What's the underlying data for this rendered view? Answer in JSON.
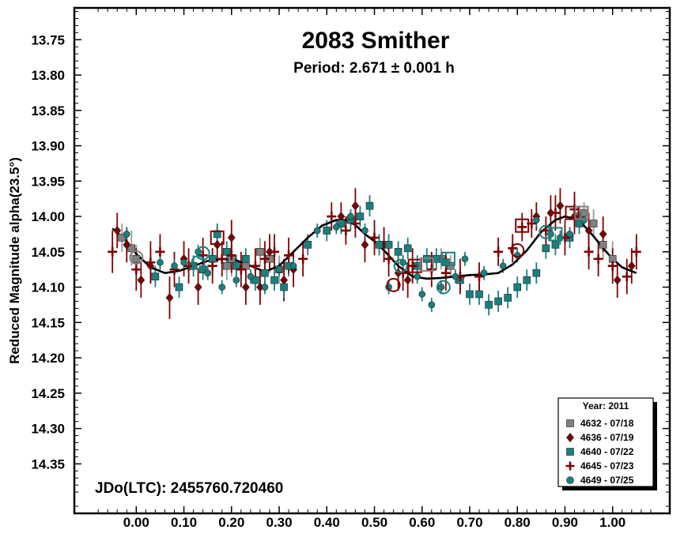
{
  "chart_data": {
    "type": "scatter",
    "title": "2083 Smither",
    "subtitle": "Period: 2.671 ± 0.001 h",
    "ylabel": "Reduced Magnitude alpha(23.5°)",
    "xlabel": "",
    "annotation": "JDo(LTC): 2455760.720460",
    "xlim": [
      -0.13,
      1.12
    ],
    "ylim": [
      13.705,
      14.42
    ],
    "y_inverted": true,
    "xticks": [
      0.0,
      0.1,
      0.2,
      0.3,
      0.4,
      0.5,
      0.6,
      0.7,
      0.8,
      0.9,
      1.0
    ],
    "xtick_labels": [
      "0.00",
      "0.10",
      "0.20",
      "0.30",
      "0.40",
      "0.50",
      "0.60",
      "0.70",
      "0.80",
      "0.90",
      "1.00"
    ],
    "yticks": [
      13.75,
      13.8,
      13.85,
      13.9,
      13.95,
      14.0,
      14.05,
      14.1,
      14.15,
      14.2,
      14.25,
      14.3,
      14.35
    ],
    "ytick_labels": [
      "13.75",
      "13.80",
      "13.85",
      "13.90",
      "13.95",
      "14.00",
      "14.05",
      "14.10",
      "14.15",
      "14.20",
      "14.25",
      "14.30",
      "14.35"
    ],
    "legend": {
      "title": "Year: 2011",
      "position": "bottom-right",
      "entries": [
        {
          "label": "4632 - 07/18",
          "color": "#808080",
          "marker": "square"
        },
        {
          "label": "4636 - 07/19",
          "color": "#7f0000",
          "marker": "diamond"
        },
        {
          "label": "4640 - 07/22",
          "color": "#1a7f7f",
          "marker": "square"
        },
        {
          "label": "4645 - 07/23",
          "color": "#7f0000",
          "marker": "plus"
        },
        {
          "label": "4649 - 07/25",
          "color": "#1a7f7f",
          "marker": "circle"
        }
      ]
    },
    "fit_curve": {
      "x": [
        -0.05,
        -0.02,
        0.0,
        0.03,
        0.06,
        0.09,
        0.12,
        0.15,
        0.18,
        0.21,
        0.24,
        0.27,
        0.3,
        0.33,
        0.36,
        0.39,
        0.42,
        0.44,
        0.46,
        0.48,
        0.5,
        0.52,
        0.55,
        0.58,
        0.61,
        0.64,
        0.67,
        0.7,
        0.73,
        0.76,
        0.79,
        0.82,
        0.85,
        0.88,
        0.9,
        0.92,
        0.94,
        0.96,
        0.98,
        1.0,
        1.02,
        1.05
      ],
      "y": [
        14.017,
        14.035,
        14.053,
        14.072,
        14.08,
        14.077,
        14.07,
        14.063,
        14.06,
        14.062,
        14.07,
        14.078,
        14.07,
        14.05,
        14.03,
        14.013,
        14.005,
        14.005,
        14.012,
        14.025,
        14.035,
        14.048,
        14.07,
        14.085,
        14.088,
        14.087,
        14.085,
        14.083,
        14.082,
        14.08,
        14.068,
        14.048,
        14.022,
        14.005,
        14.0,
        14.003,
        14.013,
        14.028,
        14.045,
        14.06,
        14.072,
        14.08
      ]
    },
    "series": [
      {
        "name": "4632 - 07/18",
        "marker": "square",
        "color": "#808080",
        "x": [
          -0.03,
          -0.01,
          0.0,
          0.19,
          0.2,
          0.23,
          0.26,
          0.28,
          0.3,
          0.64,
          0.66,
          0.93,
          0.94,
          0.96,
          0.98,
          1.0
        ],
        "y": [
          14.03,
          14.045,
          14.06,
          14.07,
          14.06,
          14.07,
          14.05,
          14.06,
          14.075,
          14.06,
          14.07,
          14.0,
          13.995,
          14.01,
          14.04,
          14.06
        ],
        "yerr": [
          0.02,
          0.025,
          0.02,
          0.02,
          0.025,
          0.02,
          0.02,
          0.02,
          0.02,
          0.015,
          0.015,
          0.015,
          0.015,
          0.02,
          0.02,
          0.025
        ]
      },
      {
        "name": "4636 - 07/19",
        "marker": "diamond",
        "color": "#7f0000",
        "x": [
          -0.04,
          -0.02,
          0.01,
          0.03,
          0.07,
          0.1,
          0.13,
          0.17,
          0.2,
          0.23,
          0.26,
          0.28,
          0.31,
          0.33,
          0.43,
          0.46,
          0.48,
          0.52,
          0.55,
          0.57,
          0.84,
          0.87,
          0.89,
          0.92,
          0.95,
          0.98,
          1.01,
          1.04
        ],
        "y": [
          14.02,
          14.04,
          14.09,
          14.07,
          14.115,
          14.06,
          14.1,
          14.04,
          14.03,
          14.1,
          14.1,
          14.05,
          14.09,
          14.075,
          14.0,
          13.985,
          14.04,
          14.04,
          14.08,
          14.09,
          14.0,
          13.995,
          13.985,
          14.0,
          14.02,
          14.025,
          14.09,
          14.07
        ],
        "yerr": [
          0.025,
          0.025,
          0.025,
          0.025,
          0.03,
          0.025,
          0.025,
          0.025,
          0.025,
          0.025,
          0.025,
          0.025,
          0.03,
          0.025,
          0.02,
          0.025,
          0.025,
          0.025,
          0.025,
          0.025,
          0.02,
          0.025,
          0.025,
          0.025,
          0.025,
          0.025,
          0.025,
          0.025
        ]
      },
      {
        "name": "4640 - 07/22",
        "marker": "square",
        "color": "#1a7f7f",
        "x": [
          0.04,
          0.09,
          0.12,
          0.14,
          0.16,
          0.17,
          0.19,
          0.21,
          0.23,
          0.25,
          0.27,
          0.29,
          0.31,
          0.32,
          0.36,
          0.4,
          0.43,
          0.45,
          0.47,
          0.49,
          0.51,
          0.53,
          0.55,
          0.57,
          0.59,
          0.61,
          0.63,
          0.65,
          0.68,
          0.7,
          0.72,
          0.74,
          0.76,
          0.78,
          0.8,
          0.82,
          0.84,
          0.86,
          0.88,
          0.91,
          0.93
        ],
        "y": [
          14.085,
          14.1,
          14.07,
          14.075,
          14.06,
          14.025,
          14.05,
          14.07,
          14.06,
          14.09,
          14.08,
          14.09,
          14.1,
          14.07,
          14.04,
          14.02,
          14.01,
          14.005,
          14.0,
          13.985,
          14.04,
          14.04,
          14.05,
          14.045,
          14.07,
          14.06,
          14.06,
          14.065,
          14.09,
          14.11,
          14.11,
          14.125,
          14.12,
          14.115,
          14.1,
          14.09,
          14.08,
          14.045,
          14.04,
          14.03,
          14.01
        ],
        "yerr": [
          0.015,
          0.015,
          0.015,
          0.015,
          0.015,
          0.015,
          0.015,
          0.015,
          0.015,
          0.015,
          0.015,
          0.015,
          0.015,
          0.015,
          0.015,
          0.015,
          0.015,
          0.015,
          0.015,
          0.015,
          0.015,
          0.015,
          0.015,
          0.015,
          0.015,
          0.015,
          0.015,
          0.015,
          0.015,
          0.015,
          0.015,
          0.015,
          0.015,
          0.015,
          0.015,
          0.015,
          0.015,
          0.015,
          0.015,
          0.015,
          0.015
        ]
      },
      {
        "name": "4645 - 07/23",
        "marker": "plus",
        "color": "#7f0000",
        "x": [
          -0.05,
          0.0,
          0.03,
          0.05,
          0.08,
          0.11,
          0.14,
          0.16,
          0.18,
          0.2,
          0.22,
          0.25,
          0.27,
          0.29,
          0.32,
          0.35,
          0.41,
          0.44,
          0.46,
          0.5,
          0.53,
          0.56,
          0.58,
          0.62,
          0.65,
          0.68,
          0.72,
          0.76,
          0.79,
          0.81,
          0.83,
          0.86,
          0.88,
          0.9,
          0.92,
          0.95,
          0.97,
          1.0,
          1.03,
          1.05
        ],
        "y": [
          14.05,
          14.075,
          14.065,
          14.05,
          14.075,
          14.07,
          14.055,
          14.07,
          14.06,
          14.055,
          14.075,
          14.07,
          14.06,
          14.05,
          14.055,
          14.06,
          14.0,
          14.02,
          14.01,
          14.03,
          14.06,
          14.08,
          14.07,
          14.075,
          14.08,
          14.085,
          14.085,
          14.05,
          14.045,
          14.015,
          14.01,
          14.02,
          13.995,
          14.03,
          13.99,
          14.05,
          14.06,
          14.07,
          14.085,
          14.05
        ],
        "yerr": [
          0.03,
          0.03,
          0.03,
          0.025,
          0.025,
          0.025,
          0.025,
          0.025,
          0.025,
          0.025,
          0.025,
          0.025,
          0.025,
          0.025,
          0.025,
          0.025,
          0.02,
          0.02,
          0.02,
          0.025,
          0.025,
          0.025,
          0.025,
          0.025,
          0.025,
          0.025,
          0.02,
          0.02,
          0.02,
          0.02,
          0.02,
          0.02,
          0.025,
          0.025,
          0.025,
          0.025,
          0.025,
          0.025,
          0.025,
          0.025
        ]
      },
      {
        "name": "4649 - 07/25",
        "marker": "circle",
        "color": "#1a7f7f",
        "x": [
          -0.02,
          0.05,
          0.08,
          0.1,
          0.13,
          0.15,
          0.18,
          0.21,
          0.24,
          0.27,
          0.3,
          0.33,
          0.38,
          0.42,
          0.45,
          0.48,
          0.53,
          0.56,
          0.59,
          0.6,
          0.62,
          0.64,
          0.67,
          0.69,
          0.73,
          0.77,
          0.8,
          0.84,
          0.87,
          0.89,
          0.91,
          0.94
        ],
        "y": [
          14.025,
          14.065,
          14.07,
          14.065,
          14.05,
          14.08,
          14.1,
          14.09,
          14.085,
          14.1,
          14.075,
          14.07,
          14.02,
          14.015,
          14.0,
          14.02,
          14.1,
          14.065,
          14.085,
          14.11,
          14.125,
          14.1,
          14.085,
          14.06,
          14.08,
          14.07,
          14.055,
          14.005,
          14.025,
          14.03,
          14.025,
          14.005
        ],
        "yerr": [
          0.01,
          0.01,
          0.01,
          0.01,
          0.01,
          0.01,
          0.01,
          0.01,
          0.01,
          0.01,
          0.01,
          0.01,
          0.01,
          0.01,
          0.01,
          0.01,
          0.01,
          0.01,
          0.01,
          0.01,
          0.01,
          0.01,
          0.01,
          0.01,
          0.01,
          0.01,
          0.01,
          0.01,
          0.01,
          0.01,
          0.01,
          0.01
        ]
      }
    ],
    "highlighted_points": [
      {
        "series": "4632 - 07/18",
        "marker": "circle",
        "x": 0.0,
        "y": 14.058
      },
      {
        "series": "4640 - 07/22",
        "marker": "circle",
        "x": 0.14,
        "y": 14.052
      },
      {
        "series": "4640 - 07/22",
        "marker": "circle",
        "x": 0.13,
        "y": 14.065
      },
      {
        "series": "4645 - 07/23",
        "marker": "square",
        "x": 0.17,
        "y": 14.03
      },
      {
        "series": "4645 - 07/23",
        "marker": "circle",
        "x": 0.54,
        "y": 14.097
      },
      {
        "series": "4640 - 07/22",
        "marker": "circle",
        "x": 0.555,
        "y": 14.07
      },
      {
        "series": "4645 - 07/23",
        "marker": "square",
        "x": 0.585,
        "y": 14.07
      },
      {
        "series": "4632 - 07/18",
        "marker": "square",
        "x": 0.61,
        "y": 14.068
      },
      {
        "series": "4640 - 07/22",
        "marker": "square",
        "x": 0.655,
        "y": 14.06
      },
      {
        "series": "4640 - 07/22",
        "marker": "circle",
        "x": 0.645,
        "y": 14.1
      },
      {
        "series": "4645 - 07/23",
        "marker": "circle",
        "x": 0.8,
        "y": 14.048
      },
      {
        "series": "4645 - 07/23",
        "marker": "square",
        "x": 0.81,
        "y": 14.013
      },
      {
        "series": "4640 - 07/22",
        "marker": "circle",
        "x": 0.86,
        "y": 14.022
      },
      {
        "series": "4640 - 07/22",
        "marker": "square",
        "x": 0.88,
        "y": 14.025
      },
      {
        "series": "4645 - 07/23",
        "marker": "square",
        "x": 0.915,
        "y": 13.995
      },
      {
        "series": "4632 - 07/18",
        "marker": "square",
        "x": 0.935,
        "y": 13.995
      }
    ]
  }
}
